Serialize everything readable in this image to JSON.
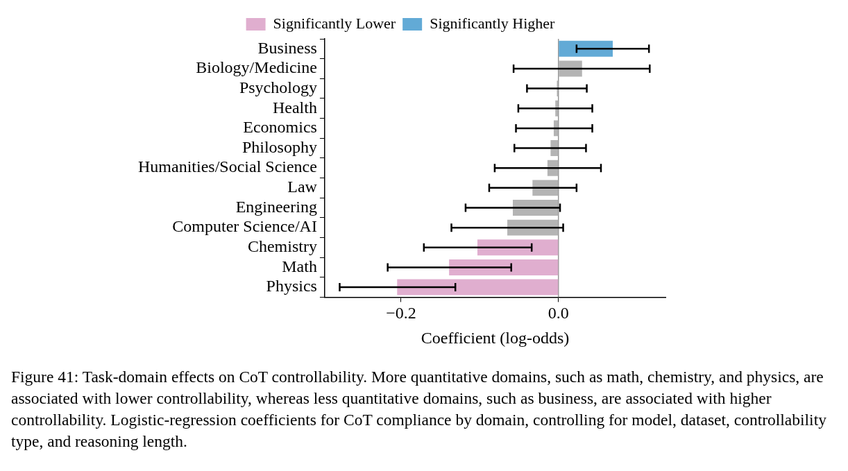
{
  "chart_data": {
    "type": "bar",
    "orientation": "horizontal",
    "xlabel": "Coefficient (log-odds)",
    "categories": [
      "Business",
      "Biology/Medicine",
      "Psychology",
      "Health",
      "Economics",
      "Philosophy",
      "Humanities/Social Science",
      "Law",
      "Engineering",
      "Computer Science/AI",
      "Chemistry",
      "Math",
      "Physics"
    ],
    "series": [
      {
        "name": "Significantly Lower",
        "color": "#e0aecf",
        "values": [
          null,
          null,
          null,
          null,
          null,
          null,
          null,
          null,
          null,
          null,
          -0.103,
          -0.139,
          -0.205
        ],
        "errors": [
          null,
          null,
          null,
          null,
          null,
          null,
          null,
          null,
          null,
          null,
          [
            -0.171,
            -0.034
          ],
          [
            -0.217,
            -0.06
          ],
          [
            -0.278,
            -0.131
          ]
        ]
      },
      {
        "name": "Significantly Higher",
        "color": "#62aad6",
        "values": [
          0.069,
          null,
          null,
          null,
          null,
          null,
          null,
          null,
          null,
          null,
          null,
          null,
          null
        ],
        "errors": [
          [
            0.023,
            0.115
          ],
          null,
          null,
          null,
          null,
          null,
          null,
          null,
          null,
          null,
          null,
          null,
          null
        ]
      },
      {
        "color": "#b4b4b4",
        "values": [
          null,
          0.03,
          -0.002,
          -0.004,
          -0.006,
          -0.01,
          -0.014,
          -0.033,
          -0.058,
          -0.065,
          null,
          null,
          null
        ],
        "errors": [
          null,
          [
            -0.057,
            0.116
          ],
          [
            -0.04,
            0.036
          ],
          [
            -0.051,
            0.043
          ],
          [
            -0.054,
            0.043
          ],
          [
            -0.056,
            0.035
          ],
          [
            -0.081,
            0.054
          ],
          [
            -0.088,
            0.023
          ],
          [
            -0.118,
            0.002
          ],
          [
            -0.136,
            0.006
          ],
          null,
          null,
          null
        ]
      }
    ],
    "xlim": [
      -0.297,
      0.136
    ],
    "xticks": [
      {
        "value": -0.2,
        "label": "−0.2"
      },
      {
        "value": 0,
        "label": "0.0"
      }
    ],
    "ref_lines": [
      {
        "axis": "x",
        "value": 0,
        "color": "#808080"
      }
    ],
    "grid": false,
    "legend": "top",
    "annotations": [
      "Figure 41: Task-domain effects on CoT controllability. More quantitative domains, such as math, chemistry, and physics, are associated with lower controllability, whereas less quantitative domains, such as business, are associated with higher controllability. Logistic-regression coefficients for CoT compliance by domain, controlling for model, dataset, controllability type, and reasoning length."
    ]
  }
}
